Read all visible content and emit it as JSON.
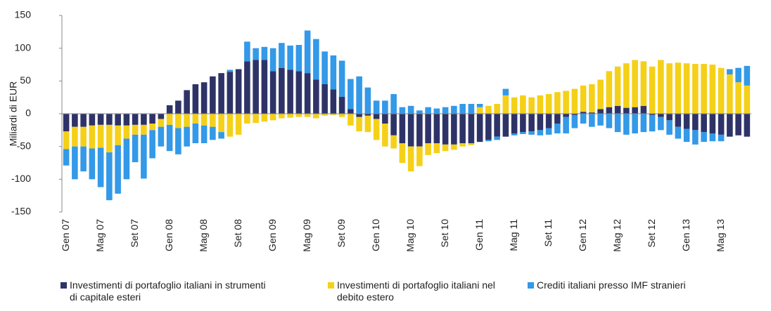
{
  "chart_data": {
    "type": "bar",
    "stacked": true,
    "y_label": "Miliardi di EUR",
    "ylim": [
      -150,
      150
    ],
    "yticks": [
      -150,
      -100,
      -50,
      0,
      50,
      100,
      150
    ],
    "categories": [
      "Gen 07",
      null,
      null,
      null,
      "Mag 07",
      null,
      null,
      null,
      "Set 07",
      null,
      null,
      null,
      "Gen 08",
      null,
      null,
      null,
      "Mag 08",
      null,
      null,
      null,
      "Set 08",
      null,
      null,
      null,
      "Gen 09",
      null,
      null,
      null,
      "Mag 09",
      null,
      null,
      null,
      "Set 09",
      null,
      null,
      null,
      "Gen 10",
      null,
      null,
      null,
      "Mag 10",
      null,
      null,
      null,
      "Set 10",
      null,
      null,
      null,
      "Gen 11",
      null,
      null,
      null,
      "Mag 11",
      null,
      null,
      null,
      "Set 11",
      null,
      null,
      null,
      "Gen 12",
      null,
      null,
      null,
      "Mag 12",
      null,
      null,
      null,
      "Set 12",
      null,
      null,
      null,
      "Gen 13",
      null,
      null,
      null,
      "Mag 13",
      null,
      null,
      null
    ],
    "series": [
      {
        "name": "Investimenti di portafoglio italiani in strumenti di capitale esteri",
        "color": "#2e3367",
        "values": [
          -27,
          -20,
          -20,
          -18,
          -17,
          -17,
          -18,
          -18,
          -17,
          -17,
          -15,
          -8,
          13,
          20,
          36,
          45,
          48,
          57,
          62,
          64,
          68,
          80,
          82,
          82,
          65,
          70,
          67,
          65,
          62,
          52,
          45,
          37,
          26,
          7,
          -5,
          -3,
          -8,
          -15,
          -33,
          -45,
          -50,
          -50,
          -45,
          -45,
          -47,
          -47,
          -45,
          -45,
          -43,
          -40,
          -35,
          -35,
          -30,
          -28,
          -27,
          -25,
          -22,
          -15,
          -5,
          -2,
          3,
          2,
          7,
          10,
          12,
          9,
          10,
          12,
          -2,
          -5,
          -10,
          -20,
          -23,
          -25,
          -28,
          -30,
          -32,
          -35,
          -33,
          -35
        ]
      },
      {
        "name": "Investimenti di portafoglio italiani nel debito estero",
        "color": "#f5d018",
        "values": [
          -27,
          -30,
          -30,
          -35,
          -35,
          -42,
          -30,
          -20,
          -15,
          -15,
          -10,
          -12,
          -17,
          -22,
          -20,
          -15,
          -18,
          -20,
          -28,
          -35,
          -32,
          -15,
          -14,
          -12,
          -10,
          -7,
          -6,
          -5,
          -5,
          -7,
          -3,
          -2,
          -5,
          -18,
          -22,
          -25,
          -32,
          -35,
          -20,
          -30,
          -38,
          -30,
          -18,
          -15,
          -10,
          -8,
          -5,
          -3,
          10,
          12,
          15,
          28,
          25,
          28,
          25,
          28,
          30,
          33,
          35,
          38,
          40,
          43,
          45,
          55,
          60,
          68,
          72,
          68,
          72,
          82,
          77,
          78,
          77,
          76,
          76,
          75,
          70,
          60,
          48,
          43
        ]
      },
      {
        "name": "Crediti italiani presso IMF stranieri",
        "color": "#3399e8",
        "values": [
          -25,
          -50,
          -38,
          -47,
          -60,
          -73,
          -74,
          -62,
          -42,
          -67,
          -43,
          -30,
          -40,
          -40,
          -30,
          -30,
          -27,
          -20,
          -10,
          3,
          0,
          30,
          18,
          20,
          35,
          38,
          37,
          40,
          65,
          62,
          50,
          52,
          55,
          46,
          57,
          40,
          20,
          20,
          30,
          10,
          12,
          5,
          10,
          8,
          10,
          12,
          15,
          15,
          5,
          -2,
          -5,
          10,
          -3,
          -3,
          -5,
          -8,
          -10,
          -15,
          -25,
          -20,
          -15,
          -20,
          -18,
          -22,
          -28,
          -32,
          -30,
          -28,
          -25,
          -20,
          -22,
          -18,
          -20,
          -22,
          -15,
          -12,
          -10,
          8,
          22,
          30
        ]
      }
    ]
  }
}
